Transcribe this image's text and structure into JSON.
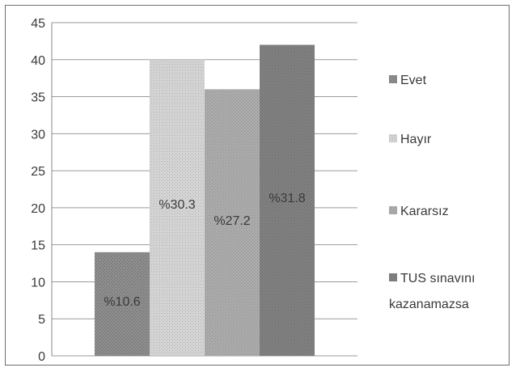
{
  "chart_data": {
    "type": "bar",
    "categories": [
      "Evet",
      "Hayır",
      "Kararsız",
      "TUS sınavını kazanamazsa"
    ],
    "values": [
      14,
      40,
      36,
      42
    ],
    "data_labels": [
      "%10.6",
      "%30.3",
      "%27.2",
      "%31.8"
    ],
    "ylim": [
      0,
      45
    ],
    "yticks": [
      0,
      5,
      10,
      15,
      20,
      25,
      30,
      35,
      40,
      45
    ],
    "grid": true,
    "legend_position": "right",
    "legend": [
      {
        "label": "Evet",
        "color": "#8a8a8a"
      },
      {
        "label": "Hayır",
        "color": "#cfcfcf"
      },
      {
        "label": "Kararsız",
        "color": "#a8a8a8"
      },
      {
        "label": "TUS sınavını",
        "label2": "kazanamazsa",
        "color": "#7e7e7e"
      }
    ],
    "colors": [
      "#8a8a8a",
      "#cfcfcf",
      "#a8a8a8",
      "#7e7e7e"
    ]
  }
}
